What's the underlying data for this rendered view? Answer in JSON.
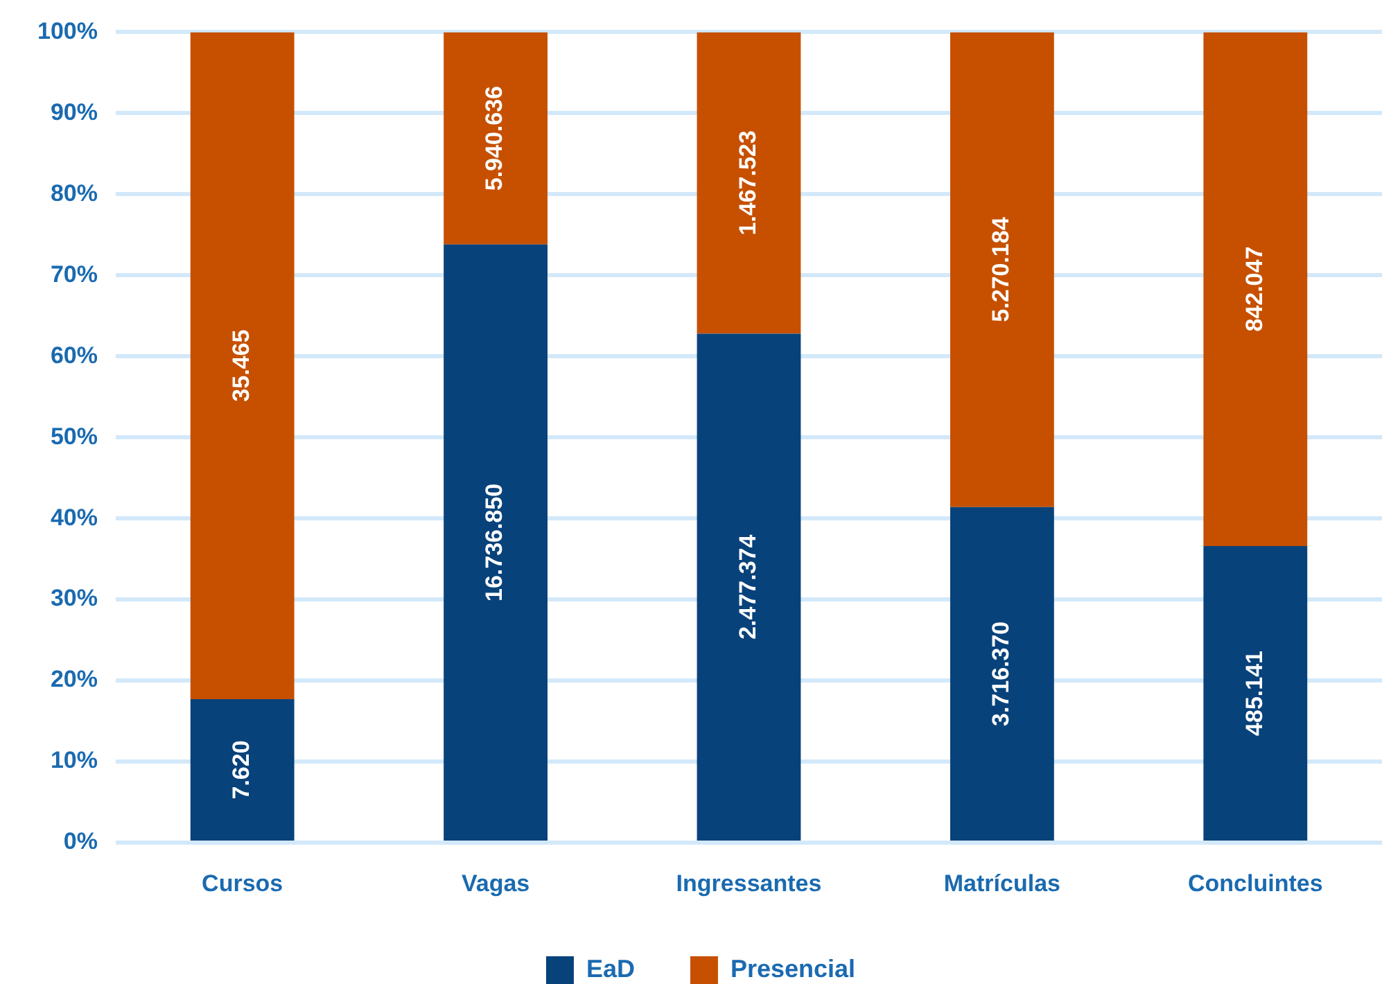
{
  "chart_data": {
    "type": "bar",
    "stacked": true,
    "categories": [
      "Cursos",
      "Vagas",
      "Ingressantes",
      "Matrículas",
      "Concluintes"
    ],
    "series": [
      {
        "name": "EaD",
        "color": "#08427a",
        "values": [
          17.7,
          73.8,
          62.8,
          41.4,
          36.6
        ]
      },
      {
        "name": "Presencial",
        "color": "#c65000",
        "values": [
          82.3,
          26.2,
          37.2,
          58.6,
          63.4
        ]
      }
    ],
    "ylim": [
      0,
      100
    ],
    "yticks": [
      {
        "value": 0,
        "label": "0%"
      },
      {
        "value": 10,
        "label": "10%"
      },
      {
        "value": 20,
        "label": "20%"
      },
      {
        "value": 30,
        "label": "30%"
      },
      {
        "value": 40,
        "label": "40%"
      },
      {
        "value": 50,
        "label": "50%"
      },
      {
        "value": 60,
        "label": "60%"
      },
      {
        "value": 70,
        "label": "70%"
      },
      {
        "value": 80,
        "label": "80%"
      },
      {
        "value": 90,
        "label": "90%"
      },
      {
        "value": 100,
        "label": "100%"
      }
    ],
    "annotations": [
      "7.620",
      "16.736.850",
      "2.477.374",
      "3.716.370",
      "485.141",
      "35.465",
      "5.940.636",
      "1.467.523",
      "5.270.184",
      "842.047"
    ],
    "grid": "y",
    "legend": "bottom"
  }
}
